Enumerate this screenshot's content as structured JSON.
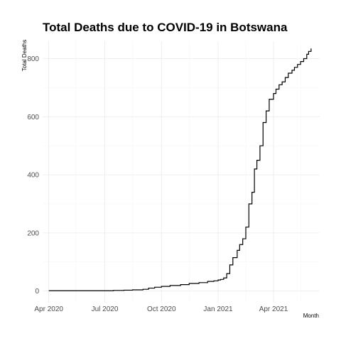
{
  "chart_data": {
    "type": "line",
    "title": "Total Deaths due to COVID-19 in Botswana",
    "xlabel": "Month",
    "ylabel": "Total Deaths",
    "x_tick_labels": [
      "Apr 2020",
      "Jul 2020",
      "Oct 2020",
      "Jan 2021",
      "Apr 2021"
    ],
    "x_ticks": [
      "2020-04-01",
      "2020-07-01",
      "2020-10-01",
      "2021-01-01",
      "2021-04-01"
    ],
    "x_minor_ticks": [
      "2020-05-15",
      "2020-08-15",
      "2020-11-15",
      "2021-02-15",
      "2021-05-15"
    ],
    "xlim": [
      "2020-03-22",
      "2021-06-15"
    ],
    "y_ticks": [
      0,
      200,
      400,
      600,
      800
    ],
    "y_minor_ticks": [
      100,
      300,
      500,
      700
    ],
    "ylim": [
      -40,
      860
    ],
    "grid": true,
    "step": true,
    "x": [
      "2020-04-01",
      "2020-04-20",
      "2020-05-15",
      "2020-06-15",
      "2020-07-15",
      "2020-08-01",
      "2020-08-15",
      "2020-09-01",
      "2020-09-10",
      "2020-09-20",
      "2020-10-01",
      "2020-10-15",
      "2020-11-01",
      "2020-11-15",
      "2020-12-01",
      "2020-12-15",
      "2020-12-25",
      "2021-01-01",
      "2021-01-05",
      "2021-01-10",
      "2021-01-15",
      "2021-01-20",
      "2021-01-25",
      "2021-02-01",
      "2021-02-05",
      "2021-02-10",
      "2021-02-15",
      "2021-02-20",
      "2021-02-25",
      "2021-03-01",
      "2021-03-05",
      "2021-03-10",
      "2021-03-15",
      "2021-03-20",
      "2021-03-25",
      "2021-04-01",
      "2021-04-05",
      "2021-04-10",
      "2021-04-15",
      "2021-04-20",
      "2021-04-25",
      "2021-05-01",
      "2021-05-05",
      "2021-05-10",
      "2021-05-15",
      "2021-05-20",
      "2021-05-25",
      "2021-05-28",
      "2021-06-01"
    ],
    "values": [
      1,
      1,
      1,
      1,
      2,
      3,
      4,
      6,
      10,
      13,
      16,
      19,
      22,
      26,
      29,
      33,
      35,
      38,
      40,
      45,
      60,
      90,
      115,
      140,
      160,
      180,
      220,
      300,
      340,
      420,
      450,
      500,
      580,
      620,
      660,
      680,
      695,
      710,
      720,
      735,
      750,
      760,
      770,
      780,
      790,
      800,
      815,
      825,
      835
    ]
  }
}
